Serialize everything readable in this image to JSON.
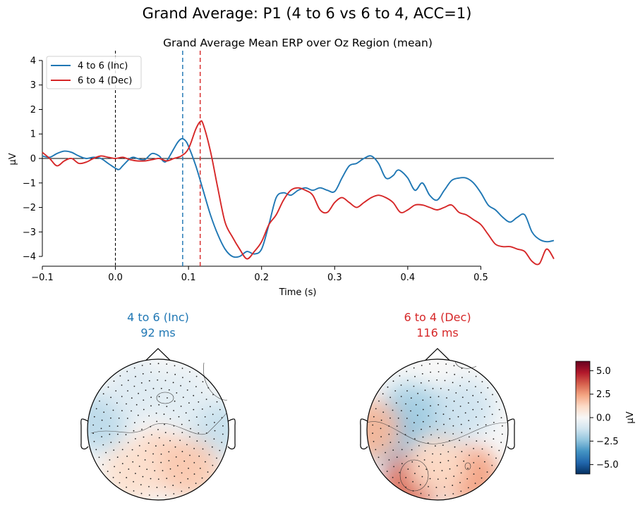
{
  "figure": {
    "suptitle": "Grand Average: P1 (4 to 6 vs 6 to 4, ACC=1)"
  },
  "colors": {
    "inc": "#1f77b4",
    "dec": "#d62728",
    "axis": "#000000"
  },
  "chart_data": [
    {
      "type": "line",
      "title": "Grand Average Mean ERP over Oz Region (mean)",
      "xlabel": "Time (s)",
      "ylabel": "µV",
      "xlim": [
        -0.1,
        0.6
      ],
      "ylim": [
        -4.4,
        4.4
      ],
      "xticks": [
        -0.1,
        0.0,
        0.1,
        0.2,
        0.3,
        0.4,
        0.5
      ],
      "xtick_labels": [
        "−0.1",
        "0.0",
        "0.1",
        "0.2",
        "0.3",
        "0.4",
        "0.5"
      ],
      "yticks": [
        4,
        3,
        2,
        1,
        0,
        -1,
        -2,
        -3,
        -4
      ],
      "ytick_labels": [
        "4",
        "3",
        "2",
        "1",
        "0",
        "−1",
        "−2",
        "−3",
        "−4"
      ],
      "legend_position": "top-left",
      "zero_line": true,
      "stimulus_onset": 0.0,
      "peak_markers": [
        {
          "series": "4 to 6 (Inc)",
          "time": 0.092
        },
        {
          "series": "6 to 4 (Dec)",
          "time": 0.116
        }
      ],
      "series": [
        {
          "name": "4 to 6 (Inc)",
          "color": "#1f77b4",
          "points": [
            [
              -0.1,
              0.1
            ],
            [
              -0.09,
              0.05
            ],
            [
              -0.08,
              0.2
            ],
            [
              -0.07,
              0.3
            ],
            [
              -0.06,
              0.25
            ],
            [
              -0.05,
              0.1
            ],
            [
              -0.04,
              0.0
            ],
            [
              -0.03,
              0.05
            ],
            [
              -0.02,
              0.0
            ],
            [
              -0.01,
              -0.2
            ],
            [
              0.0,
              -0.4
            ],
            [
              0.005,
              -0.45
            ],
            [
              0.01,
              -0.3
            ],
            [
              0.02,
              0.0
            ],
            [
              0.025,
              0.05
            ],
            [
              0.03,
              0.0
            ],
            [
              0.04,
              -0.05
            ],
            [
              0.05,
              0.2
            ],
            [
              0.06,
              0.1
            ],
            [
              0.065,
              -0.1
            ],
            [
              0.07,
              -0.1
            ],
            [
              0.08,
              0.4
            ],
            [
              0.085,
              0.65
            ],
            [
              0.09,
              0.8
            ],
            [
              0.095,
              0.75
            ],
            [
              0.1,
              0.5
            ],
            [
              0.11,
              -0.3
            ],
            [
              0.12,
              -1.3
            ],
            [
              0.13,
              -2.3
            ],
            [
              0.14,
              -3.1
            ],
            [
              0.15,
              -3.7
            ],
            [
              0.16,
              -4.0
            ],
            [
              0.17,
              -4.0
            ],
            [
              0.18,
              -3.8
            ],
            [
              0.19,
              -3.9
            ],
            [
              0.2,
              -3.7
            ],
            [
              0.21,
              -2.7
            ],
            [
              0.22,
              -1.6
            ],
            [
              0.23,
              -1.4
            ],
            [
              0.24,
              -1.5
            ],
            [
              0.25,
              -1.3
            ],
            [
              0.26,
              -1.2
            ],
            [
              0.27,
              -1.3
            ],
            [
              0.28,
              -1.2
            ],
            [
              0.29,
              -1.3
            ],
            [
              0.3,
              -1.35
            ],
            [
              0.31,
              -0.8
            ],
            [
              0.32,
              -0.3
            ],
            [
              0.33,
              -0.2
            ],
            [
              0.34,
              0.0
            ],
            [
              0.35,
              0.1
            ],
            [
              0.36,
              -0.2
            ],
            [
              0.37,
              -0.8
            ],
            [
              0.38,
              -0.7
            ],
            [
              0.385,
              -0.5
            ],
            [
              0.39,
              -0.5
            ],
            [
              0.4,
              -0.8
            ],
            [
              0.41,
              -1.3
            ],
            [
              0.42,
              -1.0
            ],
            [
              0.43,
              -1.5
            ],
            [
              0.44,
              -1.7
            ],
            [
              0.45,
              -1.3
            ],
            [
              0.46,
              -0.9
            ],
            [
              0.47,
              -0.8
            ],
            [
              0.48,
              -0.8
            ],
            [
              0.49,
              -1.0
            ],
            [
              0.5,
              -1.4
            ],
            [
              0.51,
              -1.9
            ],
            [
              0.52,
              -2.1
            ],
            [
              0.53,
              -2.4
            ],
            [
              0.54,
              -2.6
            ],
            [
              0.55,
              -2.4
            ],
            [
              0.56,
              -2.3
            ],
            [
              0.57,
              -3.0
            ],
            [
              0.58,
              -3.3
            ],
            [
              0.59,
              -3.4
            ],
            [
              0.6,
              -3.35
            ]
          ]
        },
        {
          "name": "6 to 4 (Dec)",
          "color": "#d62728",
          "points": [
            [
              -0.1,
              0.25
            ],
            [
              -0.09,
              0.0
            ],
            [
              -0.08,
              -0.3
            ],
            [
              -0.07,
              -0.1
            ],
            [
              -0.06,
              0.0
            ],
            [
              -0.05,
              -0.2
            ],
            [
              -0.04,
              -0.15
            ],
            [
              -0.03,
              0.0
            ],
            [
              -0.02,
              0.1
            ],
            [
              -0.01,
              0.05
            ],
            [
              0.0,
              0.0
            ],
            [
              0.01,
              0.05
            ],
            [
              0.02,
              -0.05
            ],
            [
              0.03,
              -0.1
            ],
            [
              0.04,
              -0.1
            ],
            [
              0.05,
              -0.05
            ],
            [
              0.06,
              0.0
            ],
            [
              0.07,
              -0.1
            ],
            [
              0.08,
              0.0
            ],
            [
              0.09,
              0.1
            ],
            [
              0.1,
              0.4
            ],
            [
              0.11,
              1.2
            ],
            [
              0.116,
              1.5
            ],
            [
              0.12,
              1.4
            ],
            [
              0.13,
              0.3
            ],
            [
              0.14,
              -1.2
            ],
            [
              0.15,
              -2.6
            ],
            [
              0.16,
              -3.2
            ],
            [
              0.17,
              -3.7
            ],
            [
              0.18,
              -4.1
            ],
            [
              0.19,
              -3.8
            ],
            [
              0.2,
              -3.4
            ],
            [
              0.21,
              -2.7
            ],
            [
              0.22,
              -2.3
            ],
            [
              0.23,
              -1.7
            ],
            [
              0.24,
              -1.3
            ],
            [
              0.25,
              -1.2
            ],
            [
              0.26,
              -1.3
            ],
            [
              0.27,
              -1.5
            ],
            [
              0.28,
              -2.1
            ],
            [
              0.29,
              -2.2
            ],
            [
              0.3,
              -1.8
            ],
            [
              0.31,
              -1.6
            ],
            [
              0.32,
              -1.8
            ],
            [
              0.33,
              -2.0
            ],
            [
              0.34,
              -1.8
            ],
            [
              0.35,
              -1.6
            ],
            [
              0.36,
              -1.5
            ],
            [
              0.37,
              -1.6
            ],
            [
              0.38,
              -1.8
            ],
            [
              0.39,
              -2.2
            ],
            [
              0.4,
              -2.1
            ],
            [
              0.41,
              -1.9
            ],
            [
              0.42,
              -1.9
            ],
            [
              0.43,
              -2.0
            ],
            [
              0.44,
              -2.1
            ],
            [
              0.45,
              -2.0
            ],
            [
              0.46,
              -1.9
            ],
            [
              0.47,
              -2.2
            ],
            [
              0.48,
              -2.3
            ],
            [
              0.49,
              -2.5
            ],
            [
              0.5,
              -2.7
            ],
            [
              0.51,
              -3.1
            ],
            [
              0.52,
              -3.5
            ],
            [
              0.53,
              -3.6
            ],
            [
              0.54,
              -3.6
            ],
            [
              0.55,
              -3.7
            ],
            [
              0.56,
              -3.8
            ],
            [
              0.57,
              -4.2
            ],
            [
              0.58,
              -4.3
            ],
            [
              0.59,
              -3.7
            ],
            [
              0.6,
              -4.1
            ]
          ]
        }
      ]
    },
    {
      "type": "heatmap",
      "subtype": "topomap",
      "title_line1": "4 to 6 (Inc)",
      "title_line2": "92 ms",
      "color": "#1f77b4",
      "blobs": [
        {
          "cx": -0.85,
          "cy": 0.1,
          "value": -1.6
        },
        {
          "cx": 0.85,
          "cy": 0.0,
          "value": -1.4
        },
        {
          "cx": -0.3,
          "cy": 0.55,
          "value": -0.8
        },
        {
          "cx": 0.3,
          "cy": 0.45,
          "value": -0.7
        },
        {
          "cx": 0.0,
          "cy": -0.45,
          "value": 1.4
        },
        {
          "cx": 0.45,
          "cy": -0.55,
          "value": 1.6
        },
        {
          "cx": -0.35,
          "cy": -0.6,
          "value": 1.0
        }
      ]
    },
    {
      "type": "heatmap",
      "subtype": "topomap",
      "title_line1": "6 to 4 (Dec)",
      "title_line2": "116 ms",
      "color": "#d62728",
      "blobs": [
        {
          "cx": -0.4,
          "cy": 0.25,
          "value": -2.0
        },
        {
          "cx": 0.05,
          "cy": 0.15,
          "value": -2.0
        },
        {
          "cx": 0.4,
          "cy": 0.3,
          "value": -1.2
        },
        {
          "cx": -0.7,
          "cy": -0.1,
          "value": -2.5
        },
        {
          "cx": -0.95,
          "cy": 0.0,
          "value": 2.0
        },
        {
          "cx": -0.35,
          "cy": -0.75,
          "value": 3.5
        },
        {
          "cx": 0.45,
          "cy": -0.65,
          "value": 2.5
        },
        {
          "cx": 0.0,
          "cy": -0.5,
          "value": 1.2
        }
      ]
    },
    {
      "type": "colorbar",
      "label": "µV",
      "vmin": -6,
      "vmax": 6,
      "ticks": [
        5.0,
        2.5,
        0.0,
        -2.5,
        -5.0
      ],
      "tick_labels": [
        "5.0",
        "2.5",
        "0.0",
        "−2.5",
        "−5.0"
      ]
    }
  ]
}
